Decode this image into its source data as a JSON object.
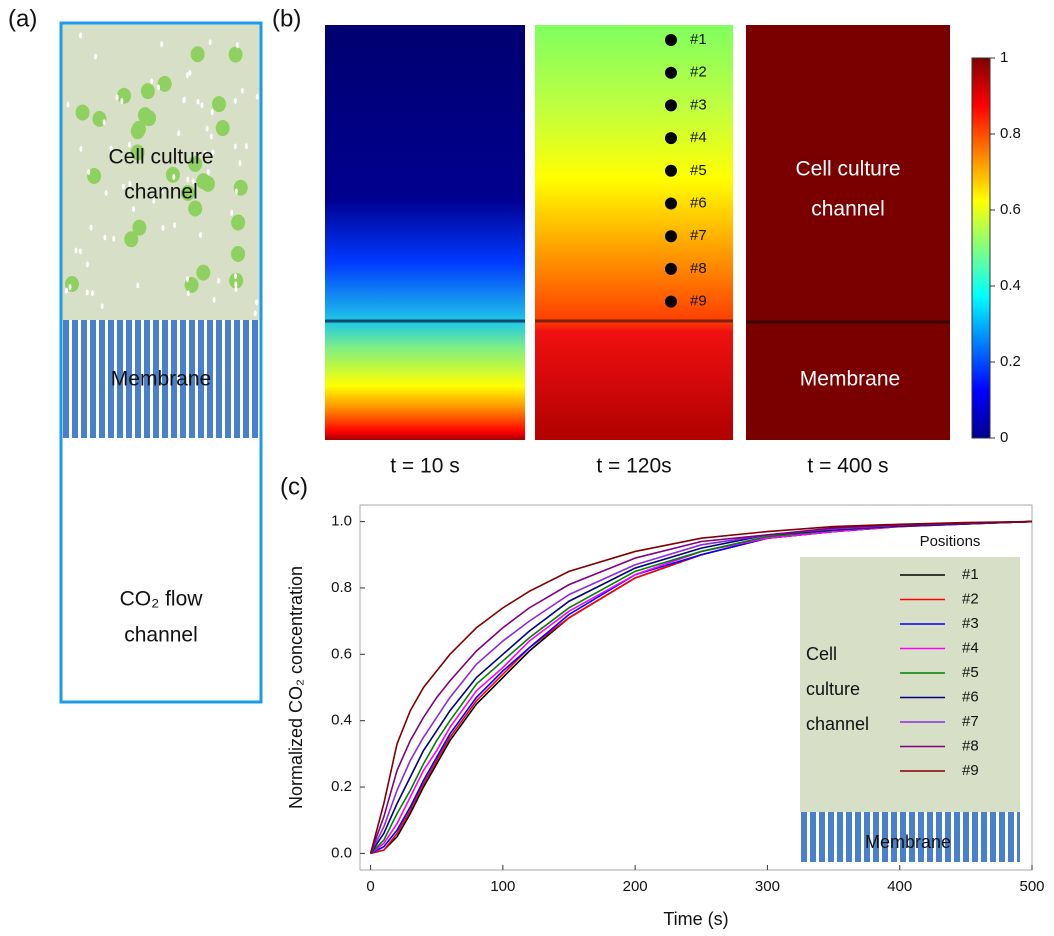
{
  "panel_a": {
    "label": "(a)",
    "cell_channel_label": [
      "Cell culture",
      "channel"
    ],
    "membrane_label": "Membrane",
    "flow_channel_label": [
      "CO₂ flow",
      "channel"
    ]
  },
  "panel_b": {
    "label": "(b)",
    "time_labels": [
      "t = 10 s",
      "t = 120s",
      "t = 400 s"
    ],
    "probe_labels": [
      "#1",
      "#2",
      "#3",
      "#4",
      "#5",
      "#6",
      "#7",
      "#8",
      "#9"
    ],
    "cell_channel_label": [
      "Cell culture",
      "channel"
    ],
    "membrane_label": "Membrane",
    "colorbar": {
      "lim": [
        0,
        1
      ],
      "ticks": [
        0,
        0.2,
        0.4,
        0.6,
        0.8,
        1
      ]
    }
  },
  "chart_data": {
    "type": "line",
    "label": "(c)",
    "x_label": "Time (s)",
    "y_label": "Normalized CO₂ concentration",
    "legend_title": "Positions",
    "inset_labels": [
      "Cell",
      "culture",
      "channel",
      "Membrane"
    ],
    "x": [
      0,
      10,
      20,
      30,
      40,
      50,
      60,
      80,
      100,
      120,
      150,
      200,
      250,
      300,
      350,
      400,
      450,
      500
    ],
    "xlim": [
      -8,
      500
    ],
    "ylim": [
      -0.05,
      1.05
    ],
    "xticks": [
      0,
      100,
      200,
      300,
      400,
      500
    ],
    "yticks": [
      {
        "value": 0,
        "label": "0.0"
      },
      0.2,
      0.4,
      0.6,
      0.8,
      {
        "value": 1,
        "label": "1.0"
      }
    ],
    "series": [
      {
        "name": "#1",
        "color": "#000000",
        "values": [
          0,
          0.01,
          0.05,
          0.12,
          0.2,
          0.27,
          0.34,
          0.45,
          0.53,
          0.61,
          0.71,
          0.83,
          0.9,
          0.95,
          0.97,
          0.985,
          0.993,
          1.0
        ]
      },
      {
        "name": "#2",
        "color": "#ff0000",
        "values": [
          0,
          0.01,
          0.06,
          0.13,
          0.21,
          0.28,
          0.35,
          0.46,
          0.54,
          0.62,
          0.71,
          0.83,
          0.9,
          0.95,
          0.97,
          0.985,
          0.993,
          1.0
        ]
      },
      {
        "name": "#3",
        "color": "#0000ff",
        "values": [
          0,
          0.02,
          0.07,
          0.14,
          0.22,
          0.29,
          0.36,
          0.47,
          0.55,
          0.62,
          0.72,
          0.84,
          0.9,
          0.95,
          0.97,
          0.986,
          0.993,
          1.0
        ]
      },
      {
        "name": "#4",
        "color": "#ff00ff",
        "values": [
          0,
          0.03,
          0.09,
          0.17,
          0.25,
          0.31,
          0.38,
          0.49,
          0.56,
          0.64,
          0.73,
          0.84,
          0.91,
          0.95,
          0.97,
          0.986,
          0.994,
          1.0
        ]
      },
      {
        "name": "#5",
        "color": "#008000",
        "values": [
          0,
          0.04,
          0.12,
          0.19,
          0.27,
          0.34,
          0.4,
          0.51,
          0.58,
          0.65,
          0.74,
          0.85,
          0.91,
          0.955,
          0.974,
          0.987,
          0.994,
          1.0
        ]
      },
      {
        "name": "#6",
        "color": "#000080",
        "values": [
          0,
          0.06,
          0.15,
          0.23,
          0.31,
          0.37,
          0.43,
          0.53,
          0.6,
          0.67,
          0.76,
          0.86,
          0.92,
          0.96,
          0.975,
          0.987,
          0.994,
          1.0
        ]
      },
      {
        "name": "#7",
        "color": "#8a2be2",
        "values": [
          0,
          0.08,
          0.19,
          0.28,
          0.35,
          0.41,
          0.47,
          0.57,
          0.64,
          0.7,
          0.78,
          0.87,
          0.93,
          0.96,
          0.978,
          0.989,
          0.995,
          1.0
        ]
      },
      {
        "name": "#8",
        "color": "#800080",
        "values": [
          0,
          0.11,
          0.25,
          0.34,
          0.41,
          0.47,
          0.52,
          0.61,
          0.68,
          0.74,
          0.81,
          0.89,
          0.94,
          0.96,
          0.981,
          0.99,
          0.996,
          1.0
        ]
      },
      {
        "name": "#9",
        "color": "#800000",
        "values": [
          0,
          0.15,
          0.33,
          0.43,
          0.5,
          0.55,
          0.6,
          0.68,
          0.74,
          0.79,
          0.85,
          0.91,
          0.95,
          0.97,
          0.985,
          0.992,
          0.997,
          1.0
        ]
      }
    ]
  }
}
